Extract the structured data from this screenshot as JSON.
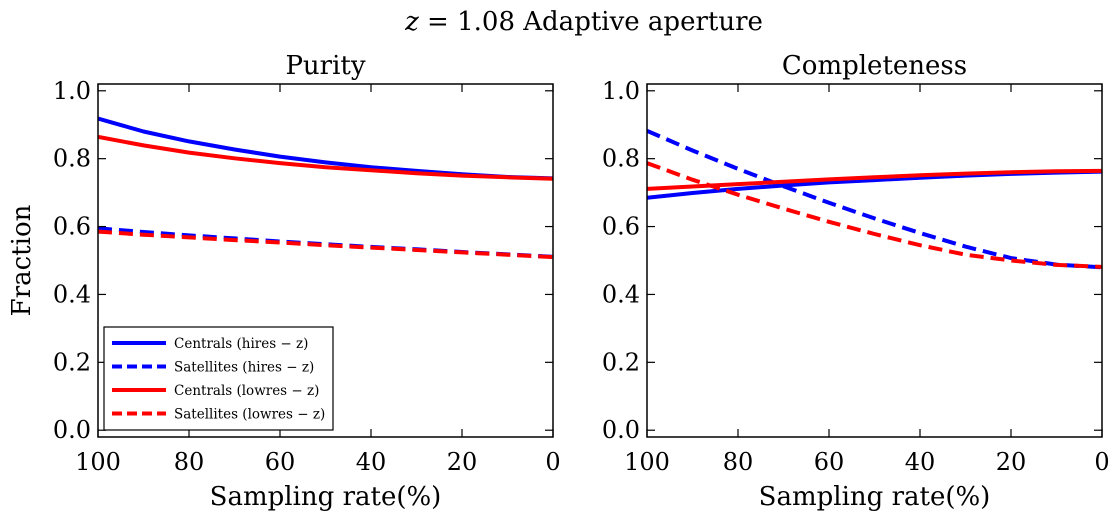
{
  "figure": {
    "suptitle": "z = 1.08 Adaptive aperture",
    "suptitle_italic": "z",
    "suptitle_rest": " = 1.08 Adaptive aperture"
  },
  "chart_data": [
    {
      "type": "line",
      "title": "Purity",
      "xlabel": "Sampling rate(%)",
      "ylabel": "Fraction",
      "xlim": [
        100,
        0
      ],
      "ylim": [
        -0.02,
        1.02
      ],
      "xticks": [
        100,
        80,
        60,
        40,
        20,
        0
      ],
      "yticks": [
        0.0,
        0.2,
        0.4,
        0.6,
        0.8,
        1.0
      ],
      "xtick_labels": [
        "100",
        "80",
        "60",
        "40",
        "20",
        "0"
      ],
      "ytick_labels": [
        "0.0",
        "0.2",
        "0.4",
        "0.6",
        "0.8",
        "1.0"
      ],
      "legend": "lower-left",
      "grid": false,
      "x": [
        100,
        90,
        80,
        70,
        60,
        50,
        40,
        30,
        20,
        10,
        0
      ],
      "series": [
        {
          "name": "Centrals (hires − z)",
          "color": "#0000ff",
          "dash": "solid",
          "values": [
            0.918,
            0.88,
            0.851,
            0.827,
            0.806,
            0.789,
            0.775,
            0.764,
            0.754,
            0.746,
            0.742
          ]
        },
        {
          "name": "Satellites (hires − z)",
          "color": "#0000ff",
          "dash": "dashed",
          "values": [
            0.595,
            0.584,
            0.574,
            0.565,
            0.556,
            0.548,
            0.54,
            0.533,
            0.525,
            0.518,
            0.511
          ]
        },
        {
          "name": "Centrals (lowres − z)",
          "color": "#ff0000",
          "dash": "solid",
          "values": [
            0.864,
            0.839,
            0.818,
            0.801,
            0.787,
            0.775,
            0.766,
            0.757,
            0.75,
            0.745,
            0.741
          ]
        },
        {
          "name": "Satellites (lowres − z)",
          "color": "#ff0000",
          "dash": "dashed",
          "values": [
            0.585,
            0.576,
            0.568,
            0.56,
            0.553,
            0.545,
            0.538,
            0.531,
            0.524,
            0.517,
            0.51
          ]
        }
      ]
    },
    {
      "type": "line",
      "title": "Completeness",
      "xlabel": "Sampling rate(%)",
      "ylabel": "",
      "xlim": [
        100,
        0
      ],
      "ylim": [
        -0.02,
        1.02
      ],
      "xticks": [
        100,
        80,
        60,
        40,
        20,
        0
      ],
      "yticks": [
        0.0,
        0.2,
        0.4,
        0.6,
        0.8,
        1.0
      ],
      "xtick_labels": [
        "100",
        "80",
        "60",
        "40",
        "20",
        "0"
      ],
      "ytick_labels": [
        "0.0",
        "0.2",
        "0.4",
        "0.6",
        "0.8",
        "1.0"
      ],
      "grid": false,
      "x": [
        100,
        90,
        80,
        70,
        60,
        50,
        40,
        30,
        20,
        10,
        0
      ],
      "series": [
        {
          "name": "Centrals (hires − z)",
          "color": "#0000ff",
          "dash": "solid",
          "values": [
            0.685,
            0.699,
            0.711,
            0.721,
            0.73,
            0.737,
            0.744,
            0.75,
            0.755,
            0.759,
            0.762
          ]
        },
        {
          "name": "Satellites (hires − z)",
          "color": "#0000ff",
          "dash": "dashed",
          "values": [
            0.882,
            0.824,
            0.77,
            0.719,
            0.67,
            0.624,
            0.581,
            0.541,
            0.507,
            0.488,
            0.48
          ]
        },
        {
          "name": "Centrals (lowres − z)",
          "color": "#ff0000",
          "dash": "solid",
          "values": [
            0.711,
            0.718,
            0.725,
            0.732,
            0.739,
            0.745,
            0.751,
            0.756,
            0.76,
            0.763,
            0.764
          ]
        },
        {
          "name": "Satellites (lowres − z)",
          "color": "#ff0000",
          "dash": "dashed",
          "values": [
            0.787,
            0.738,
            0.694,
            0.653,
            0.614,
            0.578,
            0.545,
            0.517,
            0.5,
            0.487,
            0.481
          ]
        }
      ]
    }
  ]
}
